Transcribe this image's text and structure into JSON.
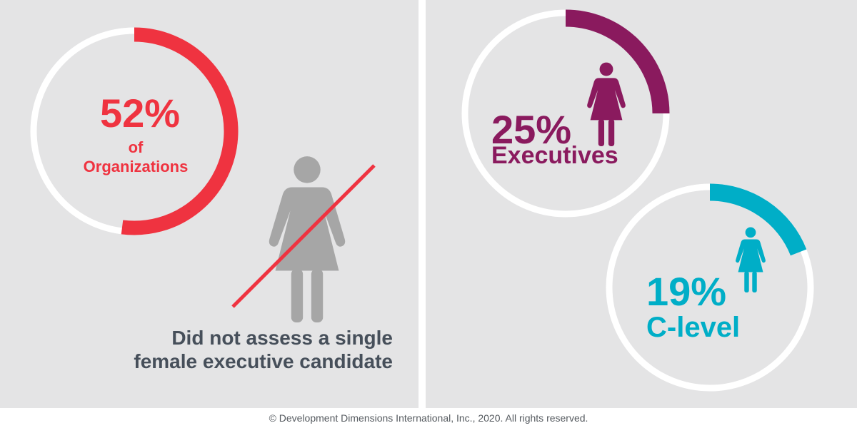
{
  "colors": {
    "panel_bg": "#e4e4e5",
    "ring_track": "#ffffff",
    "organizations": "#ef3340",
    "executives": "#8a1a5e",
    "clevel": "#00aec7",
    "figure_gray": "#a6a6a6",
    "caption": "#464f5a"
  },
  "chart_data": [
    {
      "type": "pie",
      "style": "donut-ring",
      "value_percent": 52,
      "value_label": "52%",
      "label_lines": [
        "of",
        "Organizations"
      ],
      "color": "#ef3340"
    },
    {
      "type": "pie",
      "style": "donut-ring",
      "value_percent": 25,
      "value_label": "25%",
      "label": "Executives",
      "icon": "female-figure-icon",
      "color": "#8a1a5e"
    },
    {
      "type": "pie",
      "style": "donut-ring",
      "value_percent": 19,
      "value_label": "19%",
      "label": "C-level",
      "icon": "female-figure-icon",
      "color": "#00aec7"
    }
  ],
  "caption_lines": [
    "Did not assess a single",
    "female executive candidate"
  ],
  "crossed_icon": "crossed-out-female-figure-icon",
  "footer": "© Development Dimensions International, Inc., 2020. All rights reserved."
}
